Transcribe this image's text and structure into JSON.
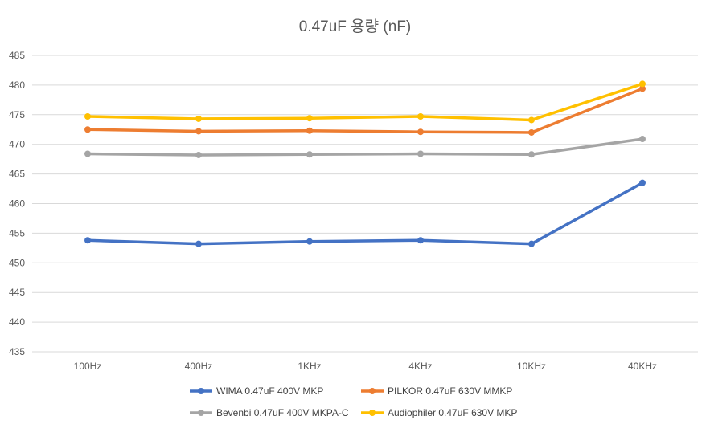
{
  "chart_data": {
    "type": "line",
    "title": "0.47uF 용량 (nF)",
    "categories": [
      "100Hz",
      "400Hz",
      "1KHz",
      "4KHz",
      "10KHz",
      "40KHz"
    ],
    "ylim": [
      435,
      485
    ],
    "yticks": [
      435,
      440,
      445,
      450,
      455,
      460,
      465,
      470,
      475,
      480,
      485
    ],
    "grid": true,
    "legend_position": "bottom",
    "series": [
      {
        "name": "WIMA 0.47uF 400V MKP",
        "color": "#4472C4",
        "values": [
          453.8,
          453.2,
          453.6,
          453.8,
          453.2,
          463.5
        ]
      },
      {
        "name": "PILKOR 0.47uF 630V MMKP",
        "color": "#ED7D31",
        "values": [
          472.5,
          472.2,
          472.3,
          472.1,
          472.0,
          479.4
        ]
      },
      {
        "name": "Bevenbi 0.47uF 400V MKPA-C",
        "color": "#A5A5A5",
        "values": [
          468.4,
          468.2,
          468.3,
          468.4,
          468.3,
          470.9
        ]
      },
      {
        "name": "Audiophiler 0.47uF 630V MKP",
        "color": "#FFC000",
        "values": [
          474.7,
          474.3,
          474.4,
          474.7,
          474.1,
          480.2
        ]
      }
    ]
  }
}
